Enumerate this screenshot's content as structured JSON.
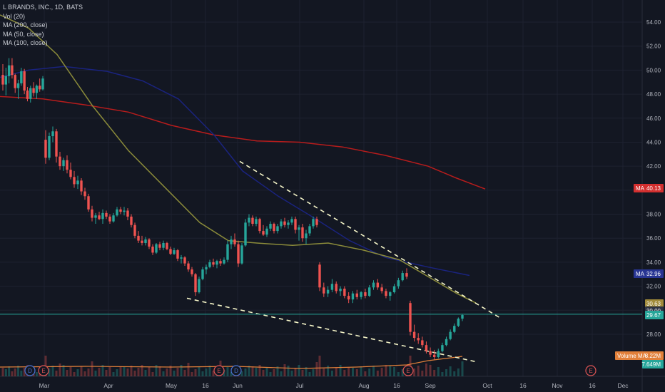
{
  "legend": {
    "title": "L BRANDS, INC., 1D, BATS",
    "vol": "Vol (20)",
    "ma200": "MA (200, close)",
    "ma50": "MA (50, close)",
    "ma100": "MA (100, close)"
  },
  "colors": {
    "background": "#131722",
    "grid": "#1e2230",
    "up": "#26a69a",
    "down": "#ef5350",
    "ma200": "#b71c1c",
    "ma100": "#1a237e",
    "ma50": "#8b8b3a",
    "trendline": "#f5f5c8",
    "price_line": "#26a69a",
    "volume_ma": "#e2803a"
  },
  "chart_data": {
    "type": "candlestick",
    "ylim": [
      25.5,
      55.5
    ],
    "y_ticks": [
      "54.00",
      "52.00",
      "50.00",
      "48.00",
      "46.00",
      "44.00",
      "42.00",
      "40.00",
      "38.00",
      "36.00",
      "34.00",
      "32.00",
      "30.00",
      "28.00"
    ],
    "x_ticks": [
      "Mar",
      "Apr",
      "May",
      "16",
      "Jun",
      "Jul",
      "Aug",
      "16",
      "Sep",
      "Oct",
      "16",
      "Nov",
      "16",
      "Dec"
    ],
    "candles": [
      [
        49.6,
        50.5,
        48.3,
        48.8
      ],
      [
        48.8,
        50.2,
        47.9,
        49.5
      ],
      [
        49.5,
        51.0,
        48.9,
        50.4
      ],
      [
        50.4,
        51.0,
        49.3,
        49.6
      ],
      [
        49.6,
        49.7,
        48.1,
        48.5
      ],
      [
        48.5,
        49.2,
        47.6,
        48.9
      ],
      [
        48.9,
        50.2,
        48.7,
        49.9
      ],
      [
        49.9,
        50.1,
        48.0,
        48.3
      ],
      [
        48.3,
        48.6,
        47.4,
        47.6
      ],
      [
        47.6,
        48.7,
        47.3,
        48.5
      ],
      [
        48.5,
        49.0,
        47.8,
        48.1
      ],
      [
        48.1,
        48.8,
        47.6,
        48.7
      ],
      [
        48.7,
        49.3,
        48.2,
        48.4
      ],
      [
        48.4,
        49.5,
        48.3,
        49.3
      ],
      [
        44.2,
        45.0,
        42.2,
        42.7
      ],
      [
        42.7,
        44.8,
        42.5,
        44.5
      ],
      [
        44.5,
        45.3,
        44.0,
        44.9
      ],
      [
        44.9,
        45.1,
        42.3,
        42.8
      ],
      [
        42.8,
        43.2,
        41.7,
        42.0
      ],
      [
        42.0,
        42.7,
        41.6,
        42.5
      ],
      [
        42.5,
        42.9,
        41.4,
        41.7
      ],
      [
        41.7,
        42.3,
        40.9,
        41.1
      ],
      [
        41.1,
        41.6,
        40.2,
        40.5
      ],
      [
        40.5,
        41.2,
        40.1,
        40.8
      ],
      [
        40.8,
        41.0,
        39.6,
        39.9
      ],
      [
        39.9,
        40.2,
        39.2,
        39.5
      ],
      [
        39.5,
        39.7,
        38.2,
        38.4
      ],
      [
        38.4,
        38.7,
        37.4,
        37.7
      ],
      [
        37.7,
        38.1,
        37.2,
        37.9
      ],
      [
        37.9,
        38.2,
        37.5,
        37.6
      ],
      [
        37.6,
        38.4,
        37.2,
        38.1
      ],
      [
        38.1,
        38.3,
        37.6,
        37.8
      ],
      [
        37.8,
        38.0,
        37.2,
        37.4
      ],
      [
        37.4,
        38.1,
        37.3,
        37.9
      ],
      [
        37.9,
        38.6,
        37.8,
        38.4
      ],
      [
        38.4,
        38.6,
        38.0,
        38.2
      ],
      [
        38.2,
        38.6,
        37.9,
        38.3
      ],
      [
        38.3,
        38.5,
        37.5,
        37.8
      ],
      [
        37.8,
        38.0,
        36.9,
        37.1
      ],
      [
        37.1,
        37.3,
        36.0,
        36.2
      ],
      [
        36.2,
        36.6,
        35.6,
        35.8
      ],
      [
        35.8,
        36.2,
        35.4,
        35.6
      ],
      [
        35.6,
        36.1,
        35.4,
        35.9
      ],
      [
        35.9,
        36.0,
        35.1,
        35.3
      ],
      [
        35.3,
        35.5,
        34.6,
        34.8
      ],
      [
        34.8,
        35.6,
        34.7,
        35.5
      ],
      [
        35.5,
        35.7,
        35.0,
        35.2
      ],
      [
        35.2,
        35.8,
        35.0,
        35.6
      ],
      [
        35.6,
        35.7,
        35.0,
        35.1
      ],
      [
        35.1,
        35.3,
        34.6,
        34.7
      ],
      [
        34.7,
        35.2,
        34.6,
        35.0
      ],
      [
        35.0,
        35.1,
        34.1,
        34.3
      ],
      [
        34.3,
        34.6,
        33.9,
        34.4
      ],
      [
        34.4,
        34.5,
        33.7,
        33.9
      ],
      [
        33.9,
        34.1,
        33.2,
        33.4
      ],
      [
        33.4,
        33.6,
        32.8,
        33.0
      ],
      [
        33.0,
        33.1,
        31.2,
        31.5
      ],
      [
        31.5,
        32.8,
        31.4,
        32.6
      ],
      [
        32.6,
        33.6,
        32.5,
        33.4
      ],
      [
        33.4,
        33.8,
        33.0,
        33.6
      ],
      [
        33.6,
        34.2,
        33.5,
        34.0
      ],
      [
        34.0,
        34.3,
        33.6,
        33.8
      ],
      [
        33.8,
        34.2,
        33.5,
        34.1
      ],
      [
        34.1,
        34.3,
        33.7,
        33.9
      ],
      [
        33.9,
        34.4,
        33.8,
        34.2
      ],
      [
        34.2,
        35.8,
        34.0,
        35.5
      ],
      [
        35.5,
        36.2,
        35.1,
        35.9
      ],
      [
        35.9,
        36.4,
        35.3,
        35.5
      ],
      [
        35.5,
        35.8,
        33.6,
        33.9
      ],
      [
        33.9,
        35.6,
        33.8,
        35.4
      ],
      [
        35.4,
        37.6,
        35.3,
        37.3
      ],
      [
        37.3,
        38.0,
        37.0,
        37.7
      ],
      [
        37.7,
        37.9,
        37.0,
        37.2
      ],
      [
        37.2,
        37.8,
        37.0,
        37.6
      ],
      [
        37.6,
        37.7,
        36.4,
        36.6
      ],
      [
        36.6,
        37.1,
        36.2,
        36.3
      ],
      [
        36.3,
        37.0,
        36.1,
        36.8
      ],
      [
        36.8,
        37.4,
        36.6,
        37.2
      ],
      [
        37.2,
        37.3,
        36.4,
        36.6
      ],
      [
        36.6,
        37.2,
        36.4,
        37.0
      ],
      [
        37.0,
        37.6,
        36.8,
        37.4
      ],
      [
        37.4,
        37.7,
        36.9,
        37.1
      ],
      [
        37.1,
        37.5,
        36.8,
        37.3
      ],
      [
        37.3,
        37.8,
        37.1,
        37.6
      ],
      [
        37.6,
        37.8,
        36.4,
        36.7
      ],
      [
        36.7,
        37.1,
        35.8,
        36.9
      ],
      [
        36.9,
        37.2,
        35.7,
        36.0
      ],
      [
        36.0,
        36.7,
        35.5,
        36.4
      ],
      [
        36.4,
        37.2,
        36.2,
        37.0
      ],
      [
        37.0,
        37.8,
        36.8,
        37.6
      ],
      [
        37.6,
        37.8,
        36.9,
        37.1
      ],
      [
        33.8,
        34.0,
        31.6,
        31.9
      ],
      [
        31.9,
        32.3,
        31.1,
        31.4
      ],
      [
        31.4,
        32.0,
        31.1,
        31.7
      ],
      [
        31.7,
        32.6,
        31.5,
        32.2
      ],
      [
        32.2,
        32.4,
        31.4,
        31.6
      ],
      [
        31.6,
        32.0,
        31.2,
        31.8
      ],
      [
        31.8,
        32.0,
        31.0,
        31.2
      ],
      [
        31.2,
        31.5,
        30.6,
        30.9
      ],
      [
        30.9,
        31.6,
        30.6,
        31.4
      ],
      [
        31.4,
        31.7,
        30.9,
        31.1
      ],
      [
        31.1,
        31.6,
        30.9,
        31.5
      ],
      [
        31.5,
        31.8,
        31.0,
        31.2
      ],
      [
        31.2,
        32.1,
        31.1,
        31.9
      ],
      [
        31.9,
        32.5,
        31.7,
        32.3
      ],
      [
        32.3,
        32.6,
        31.7,
        31.9
      ],
      [
        31.9,
        32.2,
        31.4,
        31.6
      ],
      [
        31.6,
        31.8,
        31.0,
        31.2
      ],
      [
        31.2,
        31.6,
        30.8,
        31.5
      ],
      [
        31.5,
        32.2,
        31.4,
        32.0
      ],
      [
        32.0,
        32.7,
        31.8,
        32.5
      ],
      [
        32.5,
        33.3,
        32.4,
        33.1
      ],
      [
        33.1,
        33.5,
        32.6,
        32.8
      ],
      [
        30.6,
        30.8,
        27.9,
        28.2
      ],
      [
        28.2,
        28.8,
        27.4,
        27.7
      ],
      [
        27.7,
        28.1,
        27.2,
        27.5
      ],
      [
        27.5,
        27.8,
        26.9,
        27.1
      ],
      [
        27.1,
        27.4,
        26.4,
        26.6
      ],
      [
        26.6,
        26.9,
        26.1,
        26.3
      ],
      [
        26.3,
        26.7,
        25.9,
        26.1
      ],
      [
        26.1,
        26.8,
        26.0,
        26.6
      ],
      [
        26.6,
        27.3,
        26.5,
        27.1
      ],
      [
        27.1,
        27.8,
        27.0,
        27.6
      ],
      [
        27.6,
        28.4,
        27.5,
        28.2
      ],
      [
        28.2,
        28.9,
        28.1,
        28.7
      ],
      [
        28.7,
        29.4,
        28.6,
        29.3
      ],
      [
        29.3,
        29.7,
        29.1,
        29.6
      ]
    ],
    "ma200": [
      [
        0,
        47.8
      ],
      [
        60,
        47.6
      ],
      [
        120,
        47.1
      ],
      [
        180,
        46.5
      ],
      [
        240,
        45.4
      ],
      [
        300,
        44.6
      ],
      [
        360,
        44.1
      ],
      [
        420,
        44.0
      ],
      [
        480,
        43.6
      ],
      [
        540,
        42.9
      ],
      [
        600,
        42.0
      ],
      [
        640,
        41.0
      ],
      [
        680,
        40.1
      ]
    ],
    "ma100": [
      [
        0,
        49.4
      ],
      [
        40,
        50.0
      ],
      [
        90,
        50.3
      ],
      [
        150,
        49.9
      ],
      [
        200,
        49.1
      ],
      [
        250,
        47.6
      ],
      [
        300,
        44.6
      ],
      [
        340,
        41.6
      ],
      [
        390,
        39.5
      ],
      [
        440,
        37.7
      ],
      [
        490,
        35.8
      ],
      [
        540,
        34.4
      ],
      [
        600,
        33.6
      ],
      [
        658,
        32.9
      ]
    ],
    "ma50": [
      [
        0,
        54.6
      ],
      [
        40,
        53.5
      ],
      [
        80,
        51.3
      ],
      [
        130,
        47.0
      ],
      [
        180,
        43.3
      ],
      [
        230,
        40.3
      ],
      [
        280,
        37.3
      ],
      [
        320,
        35.8
      ],
      [
        360,
        35.6
      ],
      [
        410,
        35.4
      ],
      [
        460,
        35.6
      ],
      [
        510,
        35.0
      ],
      [
        560,
        34.2
      ],
      [
        600,
        32.8
      ],
      [
        640,
        31.4
      ],
      [
        667,
        30.6
      ]
    ],
    "trendlines": [
      [
        [
          336,
          42.4
        ],
        [
          700,
          29.4
        ]
      ],
      [
        [
          262,
          31.0
        ],
        [
          668,
          25.7
        ]
      ]
    ],
    "price_tags": [
      {
        "label": "MA",
        "value": "40.13",
        "color": "#d32f2f"
      },
      {
        "label": "MA",
        "value": "32.96",
        "color": "#283593"
      },
      {
        "label": "",
        "value": "30.63",
        "color": "#a18b3a"
      },
      {
        "label": "",
        "value": "30.00",
        "color": "#2e3444"
      },
      {
        "label": "",
        "value": "29.67",
        "color": "#26a69a"
      }
    ],
    "volume_tags": [
      {
        "label": "Volume MA",
        "value": "8.22M",
        "color": "#e2803a"
      },
      {
        "label": "",
        "value": "7.649M",
        "color": "#26a69a"
      }
    ],
    "events": [
      "D",
      "E",
      "E",
      "D",
      "E",
      "E"
    ]
  }
}
